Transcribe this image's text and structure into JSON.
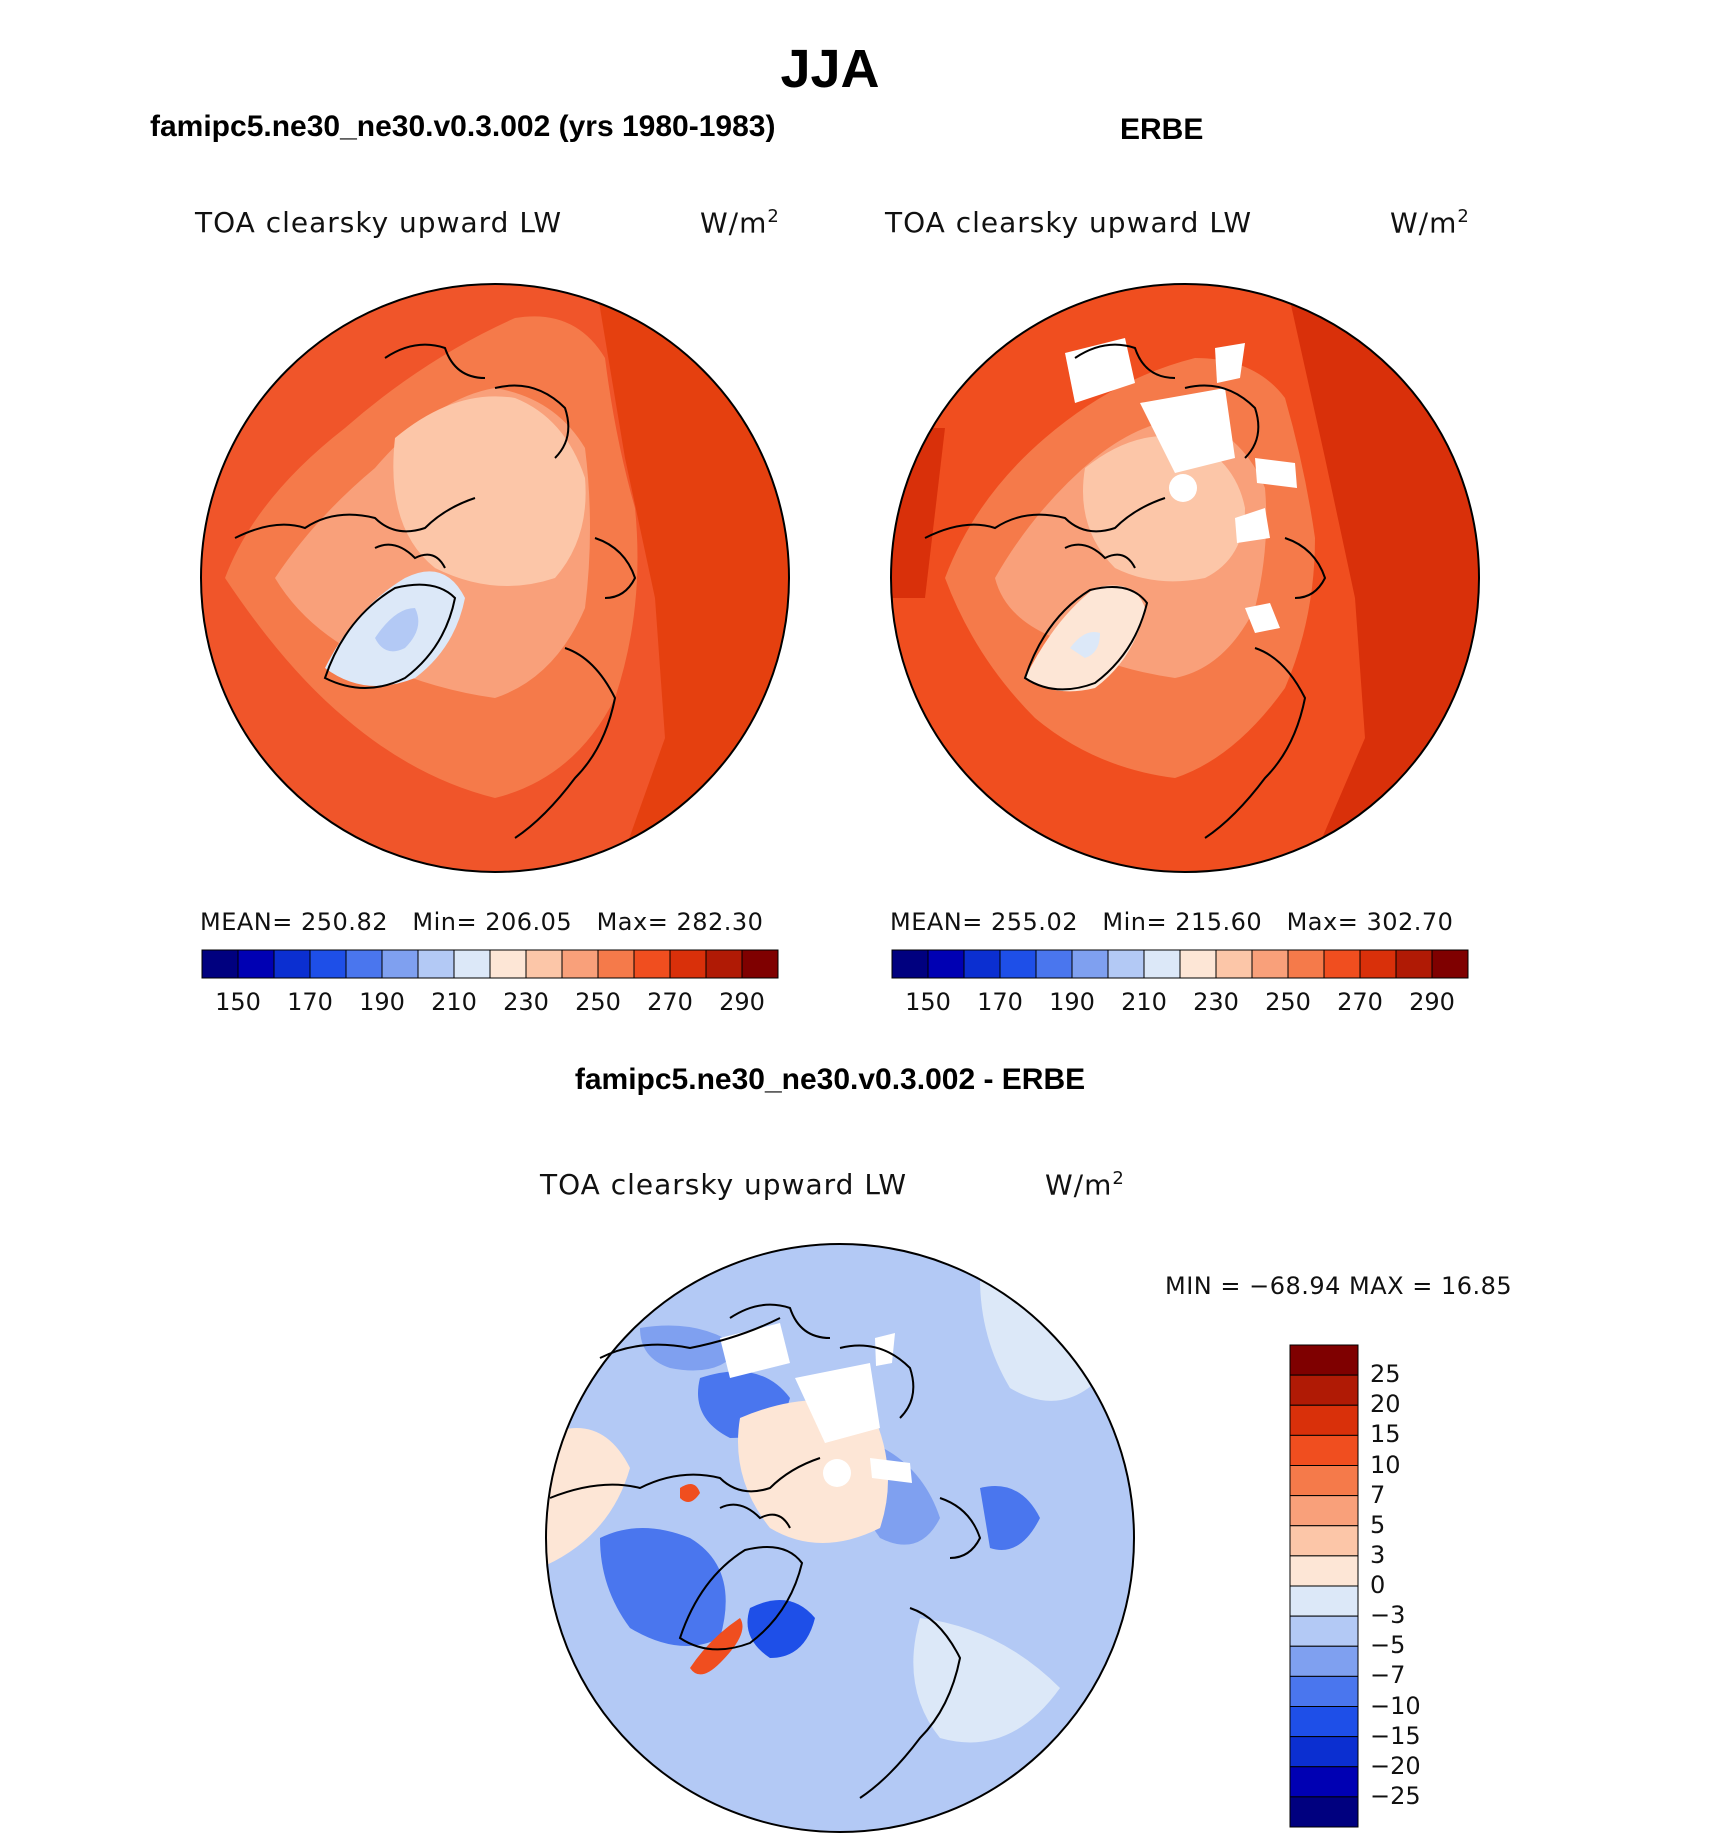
{
  "main_title": "JJA",
  "left_panel": {
    "heading": "famipc5.ne30_ne30.v0.3.002 (yrs 1980-1983)",
    "variable": "TOA clearsky upward LW",
    "units": "W/m",
    "units_exp": "2",
    "mean_label": "MEAN=",
    "mean": "250.82",
    "min_label": "Min=",
    "min": "206.05",
    "max_label": "Max=",
    "max": "282.30"
  },
  "right_panel": {
    "heading": "ERBE",
    "variable": "TOA clearsky upward LW",
    "units": "W/m",
    "units_exp": "2",
    "mean_label": "MEAN=",
    "mean": "255.02",
    "min_label": "Min=",
    "min": "215.60",
    "max_label": "Max=",
    "max": "302.70"
  },
  "colorbar_top": {
    "ticks": [
      "150",
      "170",
      "190",
      "210",
      "230",
      "250",
      "270",
      "290"
    ],
    "colors": [
      "#00007f",
      "#0000b3",
      "#0b2fd1",
      "#1e4fe8",
      "#4a76ee",
      "#7fa0f0",
      "#b3c9f5",
      "#dce8f8",
      "#fde6d6",
      "#fcc6a8",
      "#f9a07a",
      "#f57a4a",
      "#f04e1f",
      "#d9300a",
      "#b01a05",
      "#7f0000"
    ]
  },
  "diff_panel": {
    "heading": "famipc5.ne30_ne30.v0.3.002 - ERBE",
    "variable": "TOA clearsky upward LW",
    "units": "W/m",
    "units_exp": "2",
    "minmax": "MIN = −68.94 MAX =   16.85"
  },
  "colorbar_diff": {
    "labels": [
      "25",
      "20",
      "15",
      "10",
      "7",
      "5",
      "3",
      "0",
      "−3",
      "−5",
      "−7",
      "−10",
      "−15",
      "−20",
      "−25"
    ],
    "colors": [
      "#7f0000",
      "#b01a05",
      "#d9300a",
      "#f04e1f",
      "#f57a4a",
      "#f9a07a",
      "#fcc6a8",
      "#fde6d6",
      "#dce8f8",
      "#b3c9f5",
      "#7fa0f0",
      "#4a76ee",
      "#1e4fe8",
      "#0b2fd1",
      "#0000b3",
      "#00007f"
    ]
  },
  "map_colors": {
    "ocean_warm": "#f0552a",
    "mid_warm": "#f57a4a",
    "light_warm": "#f9a07a",
    "pale": "#fcc6a8",
    "very_pale": "#fde6d6",
    "ice": "#dce8f8",
    "cold": "#b3c9f5",
    "deep": "#e5400f",
    "diff_base": "#b3c9f5",
    "diff_light": "#dce8f8",
    "diff_mid": "#7fa0f0",
    "diff_strong": "#4a76ee",
    "diff_dark": "#1e4fe8",
    "diff_pos": "#fde6d6",
    "diff_red": "#f04e1f"
  }
}
